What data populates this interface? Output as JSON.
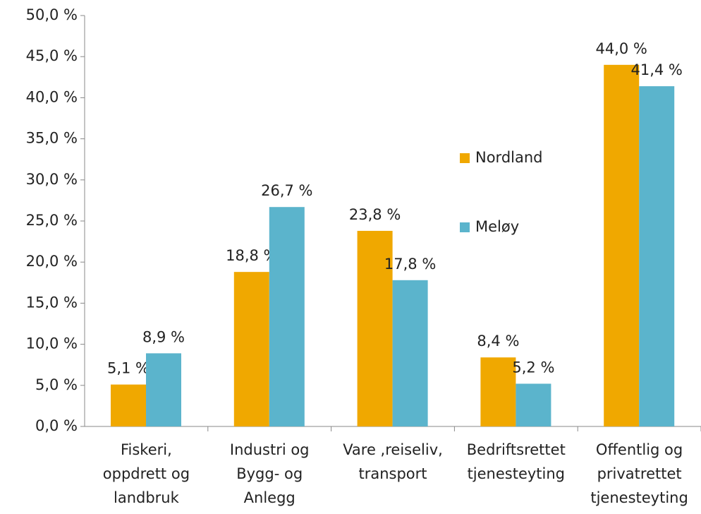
{
  "chart_data": {
    "type": "bar",
    "categories": [
      "Fiskeri,\noppdrett og\nlandbruk",
      "Industri og\nBygg- og\nAnlegg",
      "Vare  ,reiseliv,\ntransport",
      "Bedriftsrettet\ntjenesteyting",
      "Offentlig og\nprivatrettet\ntjenesteyting"
    ],
    "series": [
      {
        "name": "Nordland",
        "color": "#f0a800",
        "values": [
          5.1,
          18.8,
          23.8,
          8.4,
          44.0
        ],
        "value_labels": [
          "5,1 %",
          "18,8 %",
          "23,8 %",
          "8,4 %",
          "44,0 %"
        ]
      },
      {
        "name": "Meløy",
        "color": "#5bb4cc",
        "values": [
          8.9,
          26.7,
          17.8,
          5.2,
          41.4
        ],
        "value_labels": [
          "8,9 %",
          "26,7 %",
          "17,8 %",
          "5,2 %",
          "41,4 %"
        ]
      }
    ],
    "ylim": [
      0,
      50
    ],
    "yticks": [
      {
        "value": 0,
        "label": "0,0 %"
      },
      {
        "value": 5,
        "label": "5,0 %"
      },
      {
        "value": 10,
        "label": "10,0 %"
      },
      {
        "value": 15,
        "label": "15,0 %"
      },
      {
        "value": 20,
        "label": "20,0 %"
      },
      {
        "value": 25,
        "label": "25,0 %"
      },
      {
        "value": 30,
        "label": "30,0 %"
      },
      {
        "value": 35,
        "label": "35,0 %"
      },
      {
        "value": 40,
        "label": "40,0 %"
      },
      {
        "value": 45,
        "label": "45,0 %"
      },
      {
        "value": 50,
        "label": "50,0 %"
      }
    ],
    "grid": false,
    "legend": "center"
  }
}
